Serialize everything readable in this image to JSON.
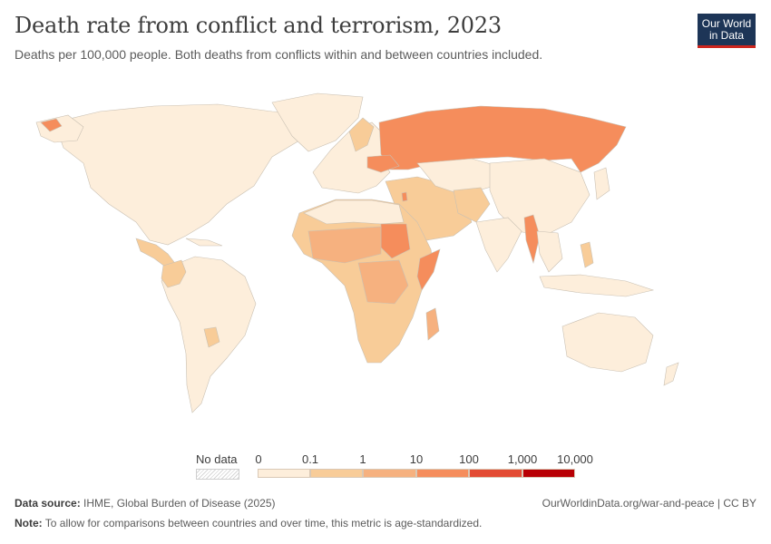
{
  "header": {
    "title": "Death rate from conflict and terrorism, 2023",
    "subtitle": "Deaths per 100,000 people. Both deaths from conflicts within and between countries included."
  },
  "logo": {
    "line1": "Our World",
    "line2": "in Data",
    "bg_color": "#1d3557",
    "accent_color": "#ce261e"
  },
  "legend": {
    "no_data_label": "No data",
    "ticks": [
      "0",
      "0.1",
      "1",
      "10",
      "100",
      "1,000",
      "10,000"
    ],
    "colors": [
      "#fdeedb",
      "#f8cc98",
      "#f6b17f",
      "#f58d5c",
      "#e34c33",
      "#b80004"
    ]
  },
  "footer": {
    "source_label": "Data source:",
    "source_text": "IHME, Global Burden of Disease (2025)",
    "source_url": "OurWorldinData.org/war-and-peace | CC BY",
    "note_label": "Note:",
    "note_text": "To allow for comparisons between countries and over time, this metric is age-standardized."
  },
  "map_data": {
    "regions": [
      {
        "name": "North America",
        "class": 0
      },
      {
        "name": "Central America",
        "class": 1
      },
      {
        "name": "Colombia",
        "class": 1
      },
      {
        "name": "South America",
        "class": 0
      },
      {
        "name": "Greenland",
        "class": 0
      },
      {
        "name": "Europe",
        "class": 0
      },
      {
        "name": "Russia",
        "class": 3
      },
      {
        "name": "Ukraine",
        "class": 3
      },
      {
        "name": "Middle East",
        "class": 1
      },
      {
        "name": "Israel / Palestine",
        "class": 3
      },
      {
        "name": "Sudan",
        "class": 3
      },
      {
        "name": "Sahel",
        "class": 2
      },
      {
        "name": "Central Africa",
        "class": 2
      },
      {
        "name": "Somalia",
        "class": 3
      },
      {
        "name": "Southern Africa",
        "class": 1
      },
      {
        "name": "Myanmar",
        "class": 3
      },
      {
        "name": "China",
        "class": 0
      },
      {
        "name": "India",
        "class": 0
      },
      {
        "name": "Australia",
        "class": 0
      }
    ]
  }
}
